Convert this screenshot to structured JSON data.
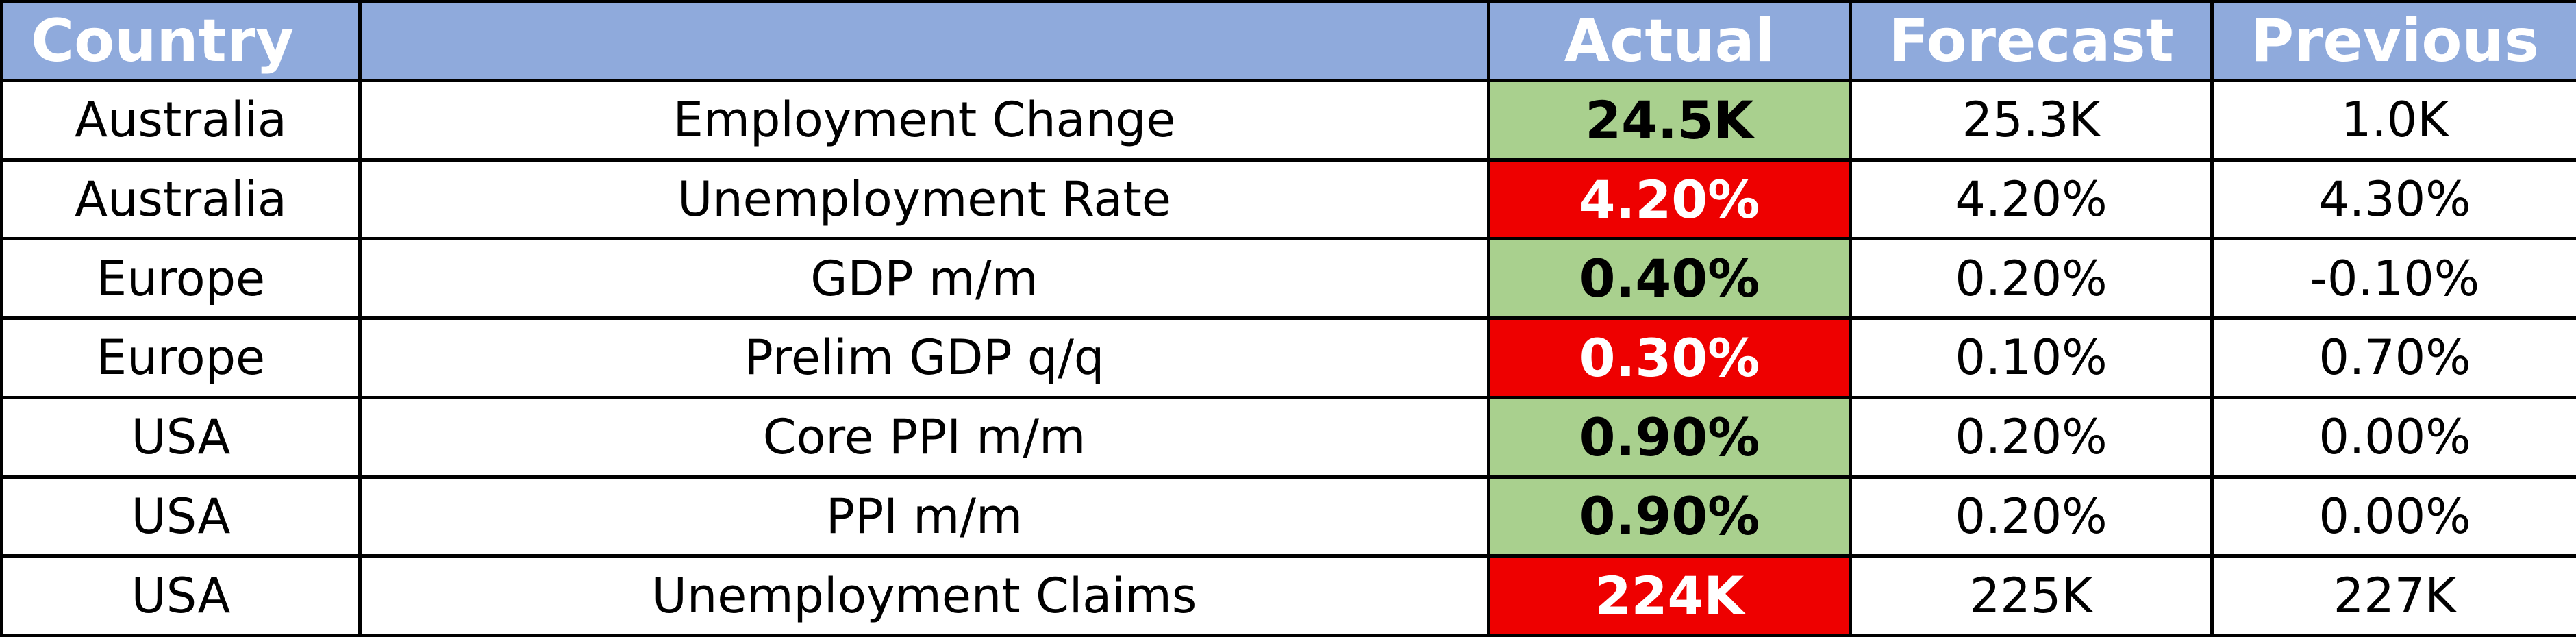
{
  "table": {
    "header": {
      "country": "Country",
      "actual": "Actual",
      "forecast": "Forecast",
      "previous": "Previous"
    },
    "header_color": "#8faadc",
    "rows": [
      {
        "cells": [
          "Australia",
          "Employment Change",
          "24.5K",
          "25.3K",
          "1.0K"
        ],
        "actual_color": "#a9d08e"
      },
      {
        "cells": [
          "Australia",
          "Unemployment Rate",
          "4.20%",
          "4.20%",
          "4.30%"
        ],
        "actual_color": "#ee0000"
      },
      {
        "cells": [
          "Europe",
          "GDP m/m",
          "0.40%",
          "0.20%",
          "-0.10%"
        ],
        "actual_color": "#a9d08e"
      },
      {
        "cells": [
          "Europe",
          "Prelim GDP q/q",
          "0.30%",
          "0.10%",
          "0.70%"
        ],
        "actual_color": "#ee0000"
      },
      {
        "cells": [
          "USA",
          "Core PPI m/m",
          "0.90%",
          "0.20%",
          "0.00%"
        ],
        "actual_color": "#a9d08e"
      },
      {
        "cells": [
          "USA",
          "PPI m/m",
          "0.90%",
          "0.20%",
          "0.00%"
        ],
        "actual_color": "#a9d08e"
      },
      {
        "cells": [
          "USA",
          "Unemployment Claims",
          "224K",
          "225K",
          "227K"
        ],
        "actual_color": "#ee0000"
      }
    ]
  }
}
